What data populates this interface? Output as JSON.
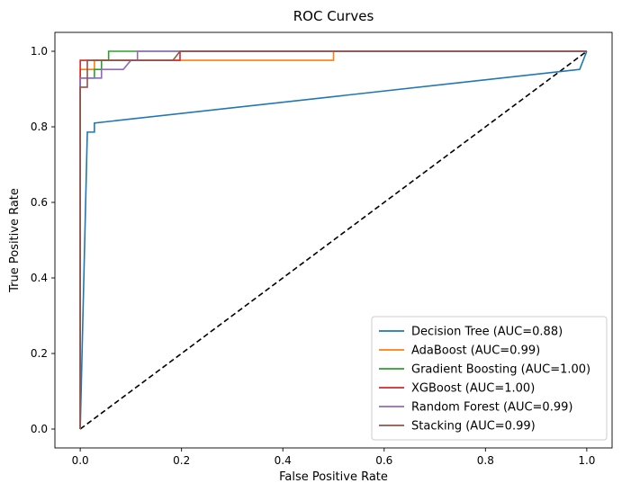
{
  "chart_data": {
    "type": "line",
    "title": "ROC Curves",
    "xlabel": "False Positive Rate",
    "ylabel": "True Positive Rate",
    "xlim": [
      -0.05,
      1.05
    ],
    "ylim": [
      -0.05,
      1.05
    ],
    "xticks": [
      "0.0",
      "0.2",
      "0.4",
      "0.6",
      "0.8",
      "1.0"
    ],
    "yticks": [
      "0.0",
      "0.2",
      "0.4",
      "0.6",
      "0.8",
      "1.0"
    ],
    "grid": false,
    "legend_position": "lower-right",
    "series": [
      {
        "name": "Decision Tree (AUC=0.88)",
        "color": "#1f77b4",
        "x": [
          0.0,
          0.0,
          0.014,
          0.014,
          0.028,
          0.028,
          0.986,
          1.0
        ],
        "y": [
          0.0,
          0.0,
          0.786,
          0.786,
          0.786,
          0.81,
          0.952,
          1.0
        ]
      },
      {
        "name": "AdaBoost (AUC=0.99)",
        "color": "#ff7f0e",
        "x": [
          0.0,
          0.0,
          0.028,
          0.028,
          0.2,
          0.2,
          0.5,
          0.5,
          1.0
        ],
        "y": [
          0.0,
          0.952,
          0.952,
          0.976,
          0.976,
          0.976,
          0.976,
          1.0,
          1.0
        ]
      },
      {
        "name": "Gradient Boosting (AUC=1.00)",
        "color": "#2ca02c",
        "x": [
          0.0,
          0.0,
          0.028,
          0.028,
          0.042,
          0.042,
          0.056,
          0.056,
          1.0
        ],
        "y": [
          0.0,
          0.929,
          0.929,
          0.952,
          0.952,
          0.976,
          0.976,
          1.0,
          1.0
        ]
      },
      {
        "name": "XGBoost (AUC=1.00)",
        "color": "#d62728",
        "x": [
          0.0,
          0.0,
          0.197,
          0.197,
          1.0
        ],
        "y": [
          0.0,
          0.976,
          0.976,
          1.0,
          1.0
        ]
      },
      {
        "name": "Random Forest (AUC=0.99)",
        "color": "#9467bd",
        "x": [
          0.0,
          0.0,
          0.014,
          0.014,
          0.042,
          0.042,
          0.085,
          0.1,
          0.113,
          0.113,
          1.0
        ],
        "y": [
          0.0,
          0.929,
          0.929,
          0.929,
          0.929,
          0.952,
          0.952,
          0.976,
          0.976,
          1.0,
          1.0
        ]
      },
      {
        "name": "Stacking (AUC=0.99)",
        "color": "#8c564b",
        "x": [
          0.0,
          0.0,
          0.014,
          0.014,
          0.183,
          0.197,
          1.0
        ],
        "y": [
          0.0,
          0.905,
          0.905,
          0.976,
          0.976,
          1.0,
          1.0
        ]
      }
    ],
    "reference_line": {
      "x": [
        0.0,
        1.0
      ],
      "y": [
        0.0,
        1.0
      ],
      "color": "#000000",
      "style": "dashed"
    }
  }
}
